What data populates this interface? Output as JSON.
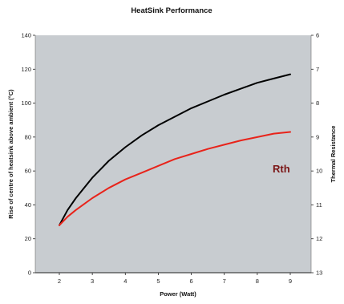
{
  "chart_data": {
    "type": "line",
    "title": "HeatSink Performance",
    "xlabel": "Power (Watt)",
    "ylabel": "Rise of centre of heatsink above ambient (°C)",
    "y2label": "Thermal Resistance",
    "annotation": "Rth",
    "xlim": [
      2,
      9
    ],
    "ylim": [
      0,
      140
    ],
    "y2lim": [
      6,
      13
    ],
    "x_ticks": [
      "2",
      "3",
      "4",
      "5",
      "6",
      "7",
      "8",
      "9"
    ],
    "y_ticks": [
      "0",
      "20",
      "40",
      "60",
      "80",
      "100",
      "120",
      "140"
    ],
    "y2_ticks": [
      "6",
      "7",
      "8",
      "9",
      "10",
      "11",
      "12",
      "13"
    ],
    "plot_background": "#c8ccd0",
    "grid": false,
    "series": [
      {
        "color": "#000000",
        "x": [
          2,
          2.25,
          2.5,
          3,
          3.5,
          4,
          4.5,
          5,
          5.5,
          6,
          6.5,
          7,
          7.5,
          8,
          8.5,
          9
        ],
        "y": [
          28,
          37,
          44,
          56,
          66,
          74,
          81,
          87,
          92,
          97,
          101,
          105,
          108.5,
          112,
          114.5,
          117
        ]
      },
      {
        "color": "#e8231a",
        "x": [
          2,
          2.25,
          2.5,
          3,
          3.5,
          4,
          4.5,
          5,
          5.5,
          6,
          6.5,
          7,
          7.5,
          8,
          8.5,
          9
        ],
        "y": [
          28,
          33,
          37,
          44,
          50,
          55,
          59,
          63,
          67,
          70,
          73,
          75.5,
          78,
          80,
          82,
          83
        ]
      }
    ]
  }
}
